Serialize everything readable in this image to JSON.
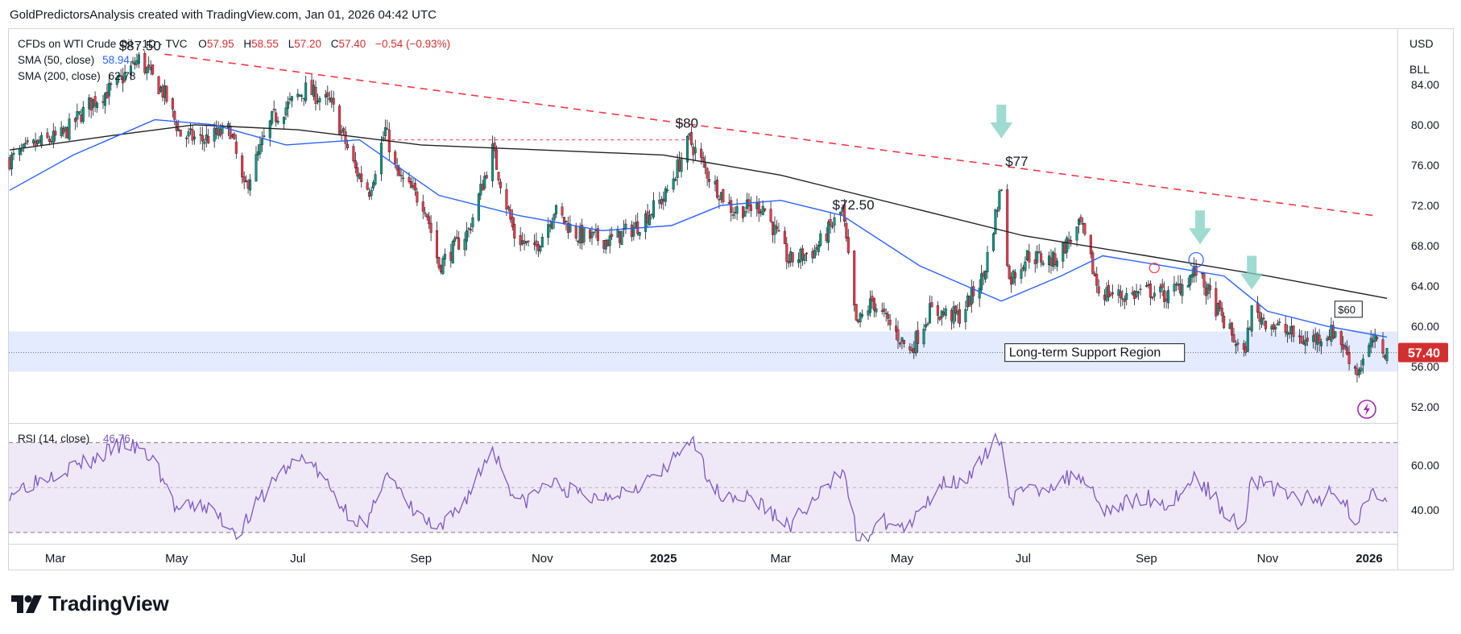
{
  "header": {
    "credit": "GoldPredictorsAnalysis created with TradingView.com, Jan 01, 2026 04:42 UTC"
  },
  "legend": {
    "instrument": "CFDs on WTI Crude Oil · 1D · TVC",
    "ohlc": {
      "o_label": "O",
      "o": "57.95",
      "h_label": "H",
      "h": "58.55",
      "l_label": "L",
      "l": "57.20",
      "c_label": "C",
      "c": "57.40",
      "change": "−0.54 (−0.93%)"
    },
    "sma50": {
      "label": "SMA (50, close)",
      "value": "58.94",
      "color": "#2962ff"
    },
    "sma200": {
      "label": "SMA (200, close)",
      "value": "62.78",
      "color": "#222222"
    }
  },
  "right_toolbar": {
    "currency": "USD",
    "unit": "BLL"
  },
  "price_axis": {
    "ticks": [
      "84.00",
      "80.00",
      "76.00",
      "72.00",
      "68.00",
      "64.00",
      "60.00",
      "56.00",
      "52.00"
    ],
    "last_price": "57.40",
    "last_price_color": "#d32f2f"
  },
  "rsi_panel": {
    "label": "RSI (14, close)",
    "value": "46.76",
    "ticks": [
      "60.00",
      "40.00"
    ],
    "color": "#7e57c2"
  },
  "time_axis": {
    "labels": [
      "Mar",
      "May",
      "Jul",
      "Sep",
      "Nov",
      "2025",
      "Mar",
      "May",
      "Jul",
      "Sep",
      "Nov",
      "2026"
    ]
  },
  "annotations": {
    "peak_1": "$87.50",
    "peak_2": "$80",
    "peak_3": "$72.50",
    "peak_4": "$77",
    "resistance_label": "$60",
    "support_label": "Long-term Support Region"
  },
  "footer": {
    "brand": "TradingView"
  },
  "chart_data": {
    "type": "candlestick",
    "title": "CFDs on WTI Crude Oil · 1D · TVC",
    "interval": "1D",
    "x_range": [
      "2024-02-07",
      "2025-12-31"
    ],
    "y_range": [
      50.5,
      89.5
    ],
    "ohlc_last": {
      "open": 57.95,
      "high": 58.55,
      "low": 57.2,
      "close": 57.4,
      "change": -0.54,
      "change_pct": -0.93
    },
    "close_anchor_points": [
      [
        "2024-02-07",
        76.5
      ],
      [
        "2024-02-20",
        78.0
      ],
      [
        "2024-03-05",
        79.0
      ],
      [
        "2024-03-18",
        82.0
      ],
      [
        "2024-04-01",
        84.0
      ],
      [
        "2024-04-12",
        86.5
      ],
      [
        "2024-04-25",
        83.0
      ],
      [
        "2024-05-03",
        79.0
      ],
      [
        "2024-05-14",
        78.5
      ],
      [
        "2024-05-28",
        79.5
      ],
      [
        "2024-06-04",
        73.5
      ],
      [
        "2024-06-18",
        80.5
      ],
      [
        "2024-07-05",
        83.5
      ],
      [
        "2024-07-18",
        82.0
      ],
      [
        "2024-07-30",
        75.5
      ],
      [
        "2024-08-06",
        73.5
      ],
      [
        "2024-08-14",
        79.5
      ],
      [
        "2024-08-20",
        75.0
      ],
      [
        "2024-09-03",
        72.0
      ],
      [
        "2024-09-10",
        66.0
      ],
      [
        "2024-09-25",
        69.5
      ],
      [
        "2024-10-07",
        77.5
      ],
      [
        "2024-10-18",
        69.0
      ],
      [
        "2024-10-28",
        67.5
      ],
      [
        "2024-11-07",
        71.5
      ],
      [
        "2024-11-19",
        69.0
      ],
      [
        "2024-12-05",
        68.5
      ],
      [
        "2024-12-19",
        70.0
      ],
      [
        "2025-01-02",
        73.0
      ],
      [
        "2025-01-14",
        78.5
      ],
      [
        "2025-01-25",
        74.5
      ],
      [
        "2025-02-05",
        71.5
      ],
      [
        "2025-02-20",
        72.0
      ],
      [
        "2025-03-05",
        66.5
      ],
      [
        "2025-03-18",
        67.5
      ],
      [
        "2025-04-01",
        71.5
      ],
      [
        "2025-04-08",
        60.0
      ],
      [
        "2025-04-16",
        62.5
      ],
      [
        "2025-05-05",
        57.5
      ],
      [
        "2025-05-15",
        61.5
      ],
      [
        "2025-05-30",
        61.0
      ],
      [
        "2025-06-11",
        65.0
      ],
      [
        "2025-06-20",
        74.0
      ],
      [
        "2025-06-24",
        64.5
      ],
      [
        "2025-07-03",
        67.0
      ],
      [
        "2025-07-16",
        66.5
      ],
      [
        "2025-07-30",
        70.0
      ],
      [
        "2025-08-08",
        63.5
      ],
      [
        "2025-08-20",
        63.0
      ],
      [
        "2025-09-03",
        63.5
      ],
      [
        "2025-09-12",
        63.0
      ],
      [
        "2025-09-26",
        65.5
      ],
      [
        "2025-10-07",
        61.5
      ],
      [
        "2025-10-20",
        57.0
      ],
      [
        "2025-10-24",
        61.5
      ],
      [
        "2025-11-05",
        60.0
      ],
      [
        "2025-11-20",
        58.5
      ],
      [
        "2025-12-05",
        59.5
      ],
      [
        "2025-12-16",
        55.5
      ],
      [
        "2025-12-24",
        58.5
      ],
      [
        "2025-12-31",
        57.4
      ]
    ],
    "series": [
      {
        "name": "SMA (50, close)",
        "points": [
          [
            "2024-02-07",
            73.5
          ],
          [
            "2024-03-10",
            77.0
          ],
          [
            "2024-04-20",
            80.5
          ],
          [
            "2024-05-20",
            80.0
          ],
          [
            "2024-06-25",
            78.0
          ],
          [
            "2024-08-01",
            78.5
          ],
          [
            "2024-09-10",
            73.0
          ],
          [
            "2024-10-20",
            71.0
          ],
          [
            "2024-12-01",
            69.5
          ],
          [
            "2025-01-05",
            70.0
          ],
          [
            "2025-01-30",
            72.0
          ],
          [
            "2025-03-01",
            72.5
          ],
          [
            "2025-04-01",
            71.0
          ],
          [
            "2025-05-10",
            66.0
          ],
          [
            "2025-06-20",
            62.5
          ],
          [
            "2025-07-20",
            65.0
          ],
          [
            "2025-08-10",
            67.0
          ],
          [
            "2025-09-10",
            66.0
          ],
          [
            "2025-10-10",
            65.0
          ],
          [
            "2025-11-01",
            61.5
          ],
          [
            "2025-12-01",
            60.0
          ],
          [
            "2025-12-31",
            58.94
          ]
        ]
      },
      {
        "name": "SMA (200, close)",
        "points": [
          [
            "2024-02-07",
            77.5
          ],
          [
            "2024-04-01",
            79.0
          ],
          [
            "2024-05-10",
            80.0
          ],
          [
            "2024-07-01",
            79.5
          ],
          [
            "2024-09-01",
            78.0
          ],
          [
            "2024-11-01",
            77.5
          ],
          [
            "2025-01-01",
            77.0
          ],
          [
            "2025-03-01",
            75.0
          ],
          [
            "2025-05-01",
            72.0
          ],
          [
            "2025-07-01",
            69.0
          ],
          [
            "2025-09-01",
            67.0
          ],
          [
            "2025-11-01",
            65.0
          ],
          [
            "2025-12-31",
            62.78
          ]
        ]
      }
    ],
    "trendline": {
      "from": [
        "2024-04-25",
        87.0
      ],
      "to": [
        "2025-12-24",
        71.0
      ],
      "style": "dashed",
      "color": "#f23645"
    },
    "horizontal_lines": [
      {
        "from": [
          "2024-08-14",
          78.5
        ],
        "to": [
          "2025-01-14",
          78.5
        ],
        "style": "dashed",
        "color": "#f23645"
      }
    ],
    "support_zone": {
      "from_price": 55.5,
      "to_price": 59.5,
      "color": "#dbe4ff"
    },
    "arrows": [
      [
        "2025-06-20",
        82.0
      ],
      [
        "2025-09-28",
        71.5
      ],
      [
        "2025-10-24",
        67.0
      ]
    ],
    "circles": [
      {
        "date": "2025-09-05",
        "price": 65.8,
        "color": "#f23645"
      },
      {
        "date": "2025-09-26",
        "price": 66.6,
        "color": "#2962ff"
      }
    ],
    "rsi": {
      "name": "RSI (14, close)",
      "last": 46.76,
      "y_range": [
        25,
        78
      ],
      "bands": [
        70,
        50,
        30
      ],
      "points": [
        [
          "2024-02-07",
          48
        ],
        [
          "2024-03-01",
          57
        ],
        [
          "2024-03-20",
          62
        ],
        [
          "2024-04-05",
          70
        ],
        [
          "2024-04-20",
          62
        ],
        [
          "2024-05-01",
          40
        ],
        [
          "2024-05-15",
          42
        ],
        [
          "2024-06-01",
          30
        ],
        [
          "2024-06-20",
          55
        ],
        [
          "2024-07-05",
          64
        ],
        [
          "2024-07-25",
          40
        ],
        [
          "2024-08-05",
          32
        ],
        [
          "2024-08-14",
          58
        ],
        [
          "2024-08-25",
          42
        ],
        [
          "2024-09-10",
          30
        ],
        [
          "2024-09-25",
          47
        ],
        [
          "2024-10-07",
          68
        ],
        [
          "2024-10-20",
          42
        ],
        [
          "2024-11-05",
          52
        ],
        [
          "2024-11-25",
          45
        ],
        [
          "2024-12-15",
          50
        ],
        [
          "2025-01-02",
          57
        ],
        [
          "2025-01-14",
          72
        ],
        [
          "2025-01-28",
          48
        ],
        [
          "2025-02-15",
          45
        ],
        [
          "2025-03-05",
          33
        ],
        [
          "2025-03-25",
          50
        ],
        [
          "2025-04-02",
          60
        ],
        [
          "2025-04-09",
          24
        ],
        [
          "2025-04-20",
          35
        ],
        [
          "2025-05-05",
          32
        ],
        [
          "2025-05-20",
          52
        ],
        [
          "2025-06-05",
          55
        ],
        [
          "2025-06-20",
          74
        ],
        [
          "2025-06-24",
          45
        ],
        [
          "2025-07-10",
          50
        ],
        [
          "2025-07-30",
          56
        ],
        [
          "2025-08-12",
          40
        ],
        [
          "2025-09-01",
          46
        ],
        [
          "2025-09-12",
          42
        ],
        [
          "2025-09-26",
          55
        ],
        [
          "2025-10-10",
          40
        ],
        [
          "2025-10-20",
          33
        ],
        [
          "2025-10-24",
          54
        ],
        [
          "2025-11-10",
          47
        ],
        [
          "2025-11-25",
          44
        ],
        [
          "2025-12-05",
          50
        ],
        [
          "2025-12-16",
          34
        ],
        [
          "2025-12-23",
          50
        ],
        [
          "2025-12-31",
          46.76
        ]
      ]
    },
    "legend_position": "top-left"
  }
}
